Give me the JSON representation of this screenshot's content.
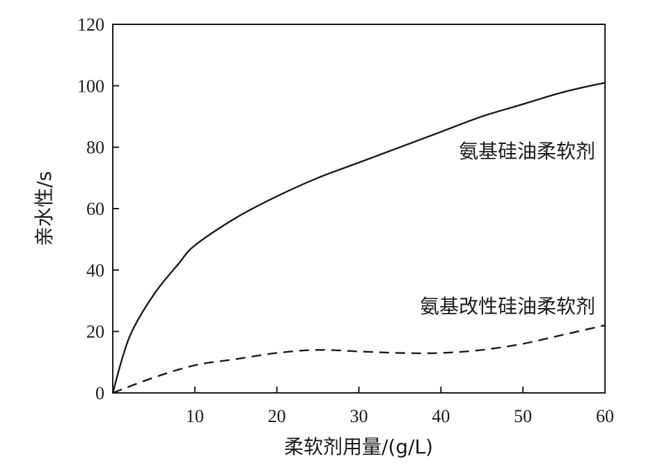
{
  "chart_data": {
    "type": "line",
    "title": "",
    "xlabel": "柔软剂用量/(g/L)",
    "ylabel": "亲水性/s",
    "xlim": [
      0,
      60
    ],
    "ylim": [
      0,
      120
    ],
    "xticks": [
      "10",
      "20",
      "30",
      "40",
      "50",
      "60"
    ],
    "yticks": [
      "0",
      "20",
      "40",
      "60",
      "80",
      "100",
      "120"
    ],
    "grid": false,
    "legend": "none (series labelled directly on plot)",
    "series": [
      {
        "name": "氨基硅油柔软剂",
        "style": "solid",
        "color": "#1a1a1a",
        "x": [
          0,
          2,
          5,
          8,
          10,
          15,
          20,
          25,
          30,
          35,
          40,
          45,
          50,
          55,
          60
        ],
        "y": [
          0,
          18,
          32,
          42,
          48,
          57,
          64,
          70,
          75,
          80,
          85,
          90,
          94,
          98,
          101
        ]
      },
      {
        "name": "氨基改性硅油柔软剂",
        "style": "dashed",
        "color": "#1a1a1a",
        "x": [
          0,
          5,
          10,
          15,
          20,
          25,
          30,
          35,
          40,
          45,
          50,
          55,
          60
        ],
        "y": [
          0,
          5,
          9,
          11,
          13,
          14,
          13.5,
          13,
          13,
          14,
          16,
          19,
          22
        ]
      }
    ]
  }
}
